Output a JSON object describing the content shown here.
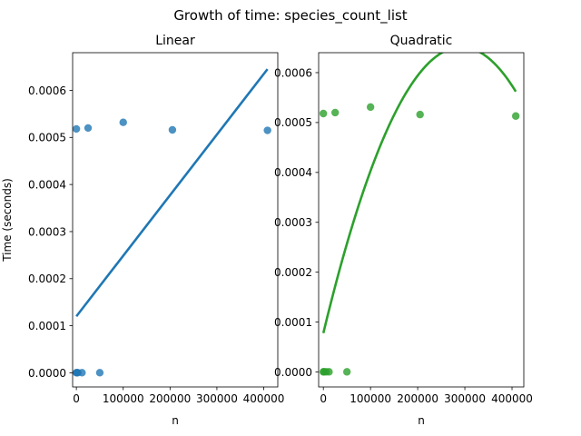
{
  "figure": {
    "suptitle": "Growth of time: species_count_list"
  },
  "chart_data": [
    {
      "type": "scatter",
      "title": "Linear",
      "xlabel": "n",
      "ylabel": "Time (seconds)",
      "xlim": [
        -8000,
        430000
      ],
      "ylim": [
        -3e-05,
        0.00068
      ],
      "xticks": [
        0,
        100000,
        200000,
        300000,
        400000
      ],
      "xtick_labels": [
        "0",
        "100000",
        "200000",
        "300000",
        "400000"
      ],
      "yticks": [
        0,
        0.0001,
        0.0002,
        0.0003,
        0.0004,
        0.0005,
        0.0006
      ],
      "ytick_labels": [
        "0.0000",
        "0.0001",
        "0.0002",
        "0.0003",
        "0.0004",
        "0.0005",
        "0.0006"
      ],
      "color": "#1f77b4",
      "points": {
        "x": [
          0,
          100,
          1000,
          3000,
          12000,
          25000,
          50000,
          100000,
          205000,
          408000
        ],
        "y": [
          0.000518,
          3e-07,
          3e-07,
          3e-07,
          3e-07,
          0.00052,
          3e-07,
          0.000532,
          0.000516,
          0.000515
        ]
      },
      "fit": {
        "kind": "linear",
        "x": [
          0,
          408000
        ],
        "y": [
          0.00012,
          0.000645
        ]
      }
    },
    {
      "type": "scatter",
      "title": "Quadratic",
      "xlabel": "n",
      "ylabel": "",
      "xlim": [
        -10000,
        425000
      ],
      "ylim": [
        -3e-05,
        0.00064
      ],
      "xticks": [
        0,
        100000,
        200000,
        300000,
        400000
      ],
      "xtick_labels": [
        "0",
        "100000",
        "200000",
        "300000",
        "400000"
      ],
      "yticks": [
        0,
        0.0001,
        0.0002,
        0.0003,
        0.0004,
        0.0005,
        0.0006
      ],
      "ytick_labels": [
        "0.0000",
        "0.0001",
        "0.0002",
        "0.0003",
        "0.0004",
        "0.0005",
        "0.0006"
      ],
      "color": "#2ca02c",
      "points": {
        "x": [
          0,
          100,
          1000,
          6000,
          12000,
          25000,
          50000,
          100000,
          205000,
          408000
        ],
        "y": [
          0.000518,
          3e-07,
          3e-07,
          3e-07,
          3e-07,
          0.00052,
          3e-07,
          0.000531,
          0.000516,
          0.000513
        ]
      },
      "fit": {
        "kind": "quadratic",
        "x_range": [
          0,
          408000
        ],
        "coef": [
          -6.7e-15,
          3.92e-09,
          7.8e-05
        ]
      }
    }
  ]
}
